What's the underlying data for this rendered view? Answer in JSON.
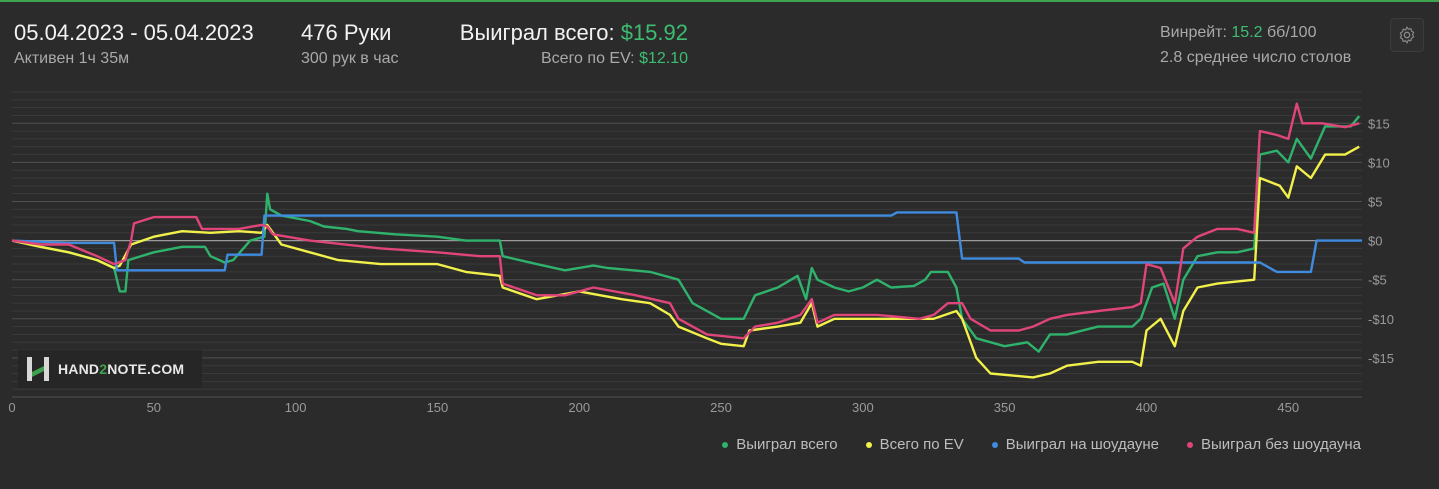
{
  "header": {
    "date_range": "05.04.2023 - 05.04.2023",
    "active_time": "Активен 1ч 35м",
    "hands": "476 Руки",
    "hands_per_hour": "300 рук в час",
    "won_total_label": "Выиграл всего:",
    "won_total_value": "$15.92",
    "ev_total_label": "Всего по EV:",
    "ev_total_value": "$12.10",
    "winrate_label": "Винрейт:",
    "winrate_value": "15.2",
    "winrate_unit": "бб/100",
    "avg_tables": "2.8 среднее число столов"
  },
  "logo": {
    "text_a": "HAND",
    "text_b": "2",
    "text_c": "NOTE.COM"
  },
  "colors": {
    "won": "#2fb36c",
    "ev": "#f2f04a",
    "showdown": "#3f8be0",
    "nonshowdown": "#e0457a",
    "grid": "#4a4a4a",
    "zero_line": "#9a9a9a"
  },
  "icons": {
    "settings": "gear-icon",
    "logo": "hand2note-logo-icon"
  },
  "chart_data": {
    "type": "line",
    "xlim": [
      0,
      476
    ],
    "ylim": [
      -20,
      19
    ],
    "x_ticks": [
      0,
      50,
      100,
      150,
      200,
      250,
      300,
      350,
      400,
      450
    ],
    "y_ticks": [
      15,
      10,
      5,
      0,
      -5,
      -10,
      -15
    ],
    "y_tick_labels": [
      "$15",
      "$10",
      "$5",
      "$0",
      "-$5",
      "-$10",
      "-$15"
    ],
    "legend_position": "bottom-right",
    "series": [
      {
        "name": "Выиграл всего",
        "color_key": "won",
        "points": [
          [
            0,
            0
          ],
          [
            10,
            -0.8
          ],
          [
            20,
            -1.5
          ],
          [
            30,
            -2.5
          ],
          [
            36,
            -3.5
          ],
          [
            38,
            -6.5
          ],
          [
            40,
            -6.5
          ],
          [
            41,
            -2.5
          ],
          [
            50,
            -1.5
          ],
          [
            60,
            -0.8
          ],
          [
            68,
            -0.8
          ],
          [
            70,
            -2
          ],
          [
            75,
            -2.8
          ],
          [
            78,
            -2.5
          ],
          [
            84,
            0
          ],
          [
            89,
            0.5
          ],
          [
            90,
            6
          ],
          [
            91,
            4
          ],
          [
            95,
            3.2
          ],
          [
            105,
            2.5
          ],
          [
            110,
            1.8
          ],
          [
            118,
            1.5
          ],
          [
            122,
            1.2
          ],
          [
            135,
            0.8
          ],
          [
            150,
            0.5
          ],
          [
            160,
            0
          ],
          [
            172,
            0
          ],
          [
            173,
            -2
          ],
          [
            185,
            -3
          ],
          [
            195,
            -3.8
          ],
          [
            205,
            -3.2
          ],
          [
            210,
            -3.5
          ],
          [
            225,
            -4
          ],
          [
            235,
            -5
          ],
          [
            240,
            -8
          ],
          [
            250,
            -10
          ],
          [
            258,
            -10
          ],
          [
            262,
            -7
          ],
          [
            270,
            -6
          ],
          [
            277,
            -4.5
          ],
          [
            280,
            -7.5
          ],
          [
            282,
            -3.5
          ],
          [
            284,
            -5
          ],
          [
            290,
            -6
          ],
          [
            295,
            -6.5
          ],
          [
            300,
            -6
          ],
          [
            305,
            -5
          ],
          [
            310,
            -6
          ],
          [
            318,
            -5.8
          ],
          [
            322,
            -5
          ],
          [
            324,
            -4
          ],
          [
            330,
            -4
          ],
          [
            333,
            -6
          ],
          [
            335,
            -10
          ],
          [
            340,
            -12.5
          ],
          [
            350,
            -13.5
          ],
          [
            358,
            -13
          ],
          [
            362,
            -14.2
          ],
          [
            366,
            -12
          ],
          [
            372,
            -12
          ],
          [
            383,
            -11
          ],
          [
            395,
            -11
          ],
          [
            398,
            -10
          ],
          [
            402,
            -6
          ],
          [
            406,
            -5.5
          ],
          [
            410,
            -10
          ],
          [
            413,
            -5
          ],
          [
            418,
            -2
          ],
          [
            425,
            -1.5
          ],
          [
            432,
            -1.5
          ],
          [
            438,
            -1
          ],
          [
            440,
            11
          ],
          [
            446,
            11.5
          ],
          [
            450,
            10
          ],
          [
            453,
            13
          ],
          [
            458,
            10.5
          ],
          [
            463,
            14.6
          ],
          [
            468,
            14.6
          ],
          [
            472,
            14.6
          ],
          [
            475,
            15.9
          ]
        ]
      },
      {
        "name": "Всего по EV",
        "color_key": "ev",
        "points": [
          [
            0,
            0
          ],
          [
            10,
            -0.8
          ],
          [
            20,
            -1.5
          ],
          [
            30,
            -2.5
          ],
          [
            36,
            -3.5
          ],
          [
            38,
            -3.2
          ],
          [
            42,
            -0.5
          ],
          [
            50,
            0.5
          ],
          [
            60,
            1.2
          ],
          [
            70,
            1
          ],
          [
            80,
            1.2
          ],
          [
            88,
            1
          ],
          [
            90,
            2
          ],
          [
            95,
            -0.5
          ],
          [
            105,
            -1.5
          ],
          [
            115,
            -2.5
          ],
          [
            130,
            -3
          ],
          [
            150,
            -3
          ],
          [
            160,
            -4
          ],
          [
            172,
            -4.5
          ],
          [
            173,
            -6
          ],
          [
            185,
            -7.5
          ],
          [
            200,
            -6.5
          ],
          [
            215,
            -7.5
          ],
          [
            225,
            -8
          ],
          [
            232,
            -9.5
          ],
          [
            235,
            -11
          ],
          [
            245,
            -12.5
          ],
          [
            250,
            -13.2
          ],
          [
            258,
            -13.5
          ],
          [
            260,
            -11.5
          ],
          [
            270,
            -11
          ],
          [
            278,
            -10.5
          ],
          [
            282,
            -8
          ],
          [
            284,
            -11
          ],
          [
            290,
            -10
          ],
          [
            300,
            -10
          ],
          [
            310,
            -10
          ],
          [
            325,
            -10
          ],
          [
            333,
            -9
          ],
          [
            335,
            -10
          ],
          [
            337,
            -12
          ],
          [
            340,
            -15
          ],
          [
            345,
            -17
          ],
          [
            360,
            -17.5
          ],
          [
            366,
            -17
          ],
          [
            372,
            -16
          ],
          [
            383,
            -15.5
          ],
          [
            395,
            -15.5
          ],
          [
            398,
            -16
          ],
          [
            400,
            -11.5
          ],
          [
            405,
            -10
          ],
          [
            410,
            -13.5
          ],
          [
            413,
            -9
          ],
          [
            418,
            -6
          ],
          [
            425,
            -5.5
          ],
          [
            438,
            -5
          ],
          [
            440,
            8
          ],
          [
            447,
            7
          ],
          [
            450,
            5.5
          ],
          [
            453,
            9.5
          ],
          [
            458,
            8
          ],
          [
            463,
            11
          ],
          [
            470,
            11
          ],
          [
            475,
            12
          ]
        ]
      },
      {
        "name": "Выиграл на шоудауне",
        "color_key": "showdown",
        "points": [
          [
            0,
            0
          ],
          [
            20,
            -0.3
          ],
          [
            36,
            -0.3
          ],
          [
            37,
            -3.8
          ],
          [
            75,
            -3.8
          ],
          [
            76,
            -1.8
          ],
          [
            88,
            -1.8
          ],
          [
            89,
            3.2
          ],
          [
            310,
            3.2
          ],
          [
            312,
            3.6
          ],
          [
            333,
            3.6
          ],
          [
            335,
            -2.3
          ],
          [
            355,
            -2.3
          ],
          [
            357,
            -2.8
          ],
          [
            440,
            -2.8
          ],
          [
            446,
            -4
          ],
          [
            458,
            -4
          ],
          [
            460,
            0
          ],
          [
            476,
            0
          ]
        ]
      },
      {
        "name": "Выиграл без шоудауна",
        "color_key": "nonshowdown",
        "points": [
          [
            0,
            0
          ],
          [
            10,
            -0.5
          ],
          [
            20,
            -0.5
          ],
          [
            30,
            -2
          ],
          [
            36,
            -3
          ],
          [
            40,
            -2.5
          ],
          [
            42,
            0
          ],
          [
            43,
            2.2
          ],
          [
            50,
            3
          ],
          [
            65,
            3
          ],
          [
            67,
            1.5
          ],
          [
            80,
            1.5
          ],
          [
            88,
            2
          ],
          [
            90,
            1.8
          ],
          [
            92,
            0.8
          ],
          [
            105,
            0
          ],
          [
            130,
            -1
          ],
          [
            150,
            -1.5
          ],
          [
            165,
            -2
          ],
          [
            172,
            -2
          ],
          [
            173,
            -5.5
          ],
          [
            185,
            -7
          ],
          [
            195,
            -7
          ],
          [
            205,
            -6
          ],
          [
            220,
            -7
          ],
          [
            232,
            -8
          ],
          [
            235,
            -10
          ],
          [
            245,
            -12
          ],
          [
            258,
            -12.5
          ],
          [
            262,
            -11
          ],
          [
            270,
            -10.5
          ],
          [
            278,
            -9.5
          ],
          [
            282,
            -7.5
          ],
          [
            284,
            -10.5
          ],
          [
            290,
            -9.5
          ],
          [
            305,
            -9.5
          ],
          [
            320,
            -10
          ],
          [
            325,
            -9.5
          ],
          [
            330,
            -8
          ],
          [
            334,
            -8
          ],
          [
            335,
            -8
          ],
          [
            338,
            -10
          ],
          [
            345,
            -11.5
          ],
          [
            355,
            -11.5
          ],
          [
            360,
            -11
          ],
          [
            366,
            -10
          ],
          [
            372,
            -9.5
          ],
          [
            383,
            -9
          ],
          [
            395,
            -8.5
          ],
          [
            398,
            -8
          ],
          [
            400,
            -3
          ],
          [
            405,
            -3.5
          ],
          [
            410,
            -8
          ],
          [
            413,
            -1
          ],
          [
            418,
            0.5
          ],
          [
            425,
            1.5
          ],
          [
            432,
            1.5
          ],
          [
            438,
            1
          ],
          [
            440,
            14
          ],
          [
            446,
            13.5
          ],
          [
            450,
            13
          ],
          [
            453,
            17.5
          ],
          [
            455,
            15
          ],
          [
            462,
            15
          ],
          [
            470,
            14.5
          ],
          [
            475,
            15
          ]
        ]
      }
    ]
  }
}
